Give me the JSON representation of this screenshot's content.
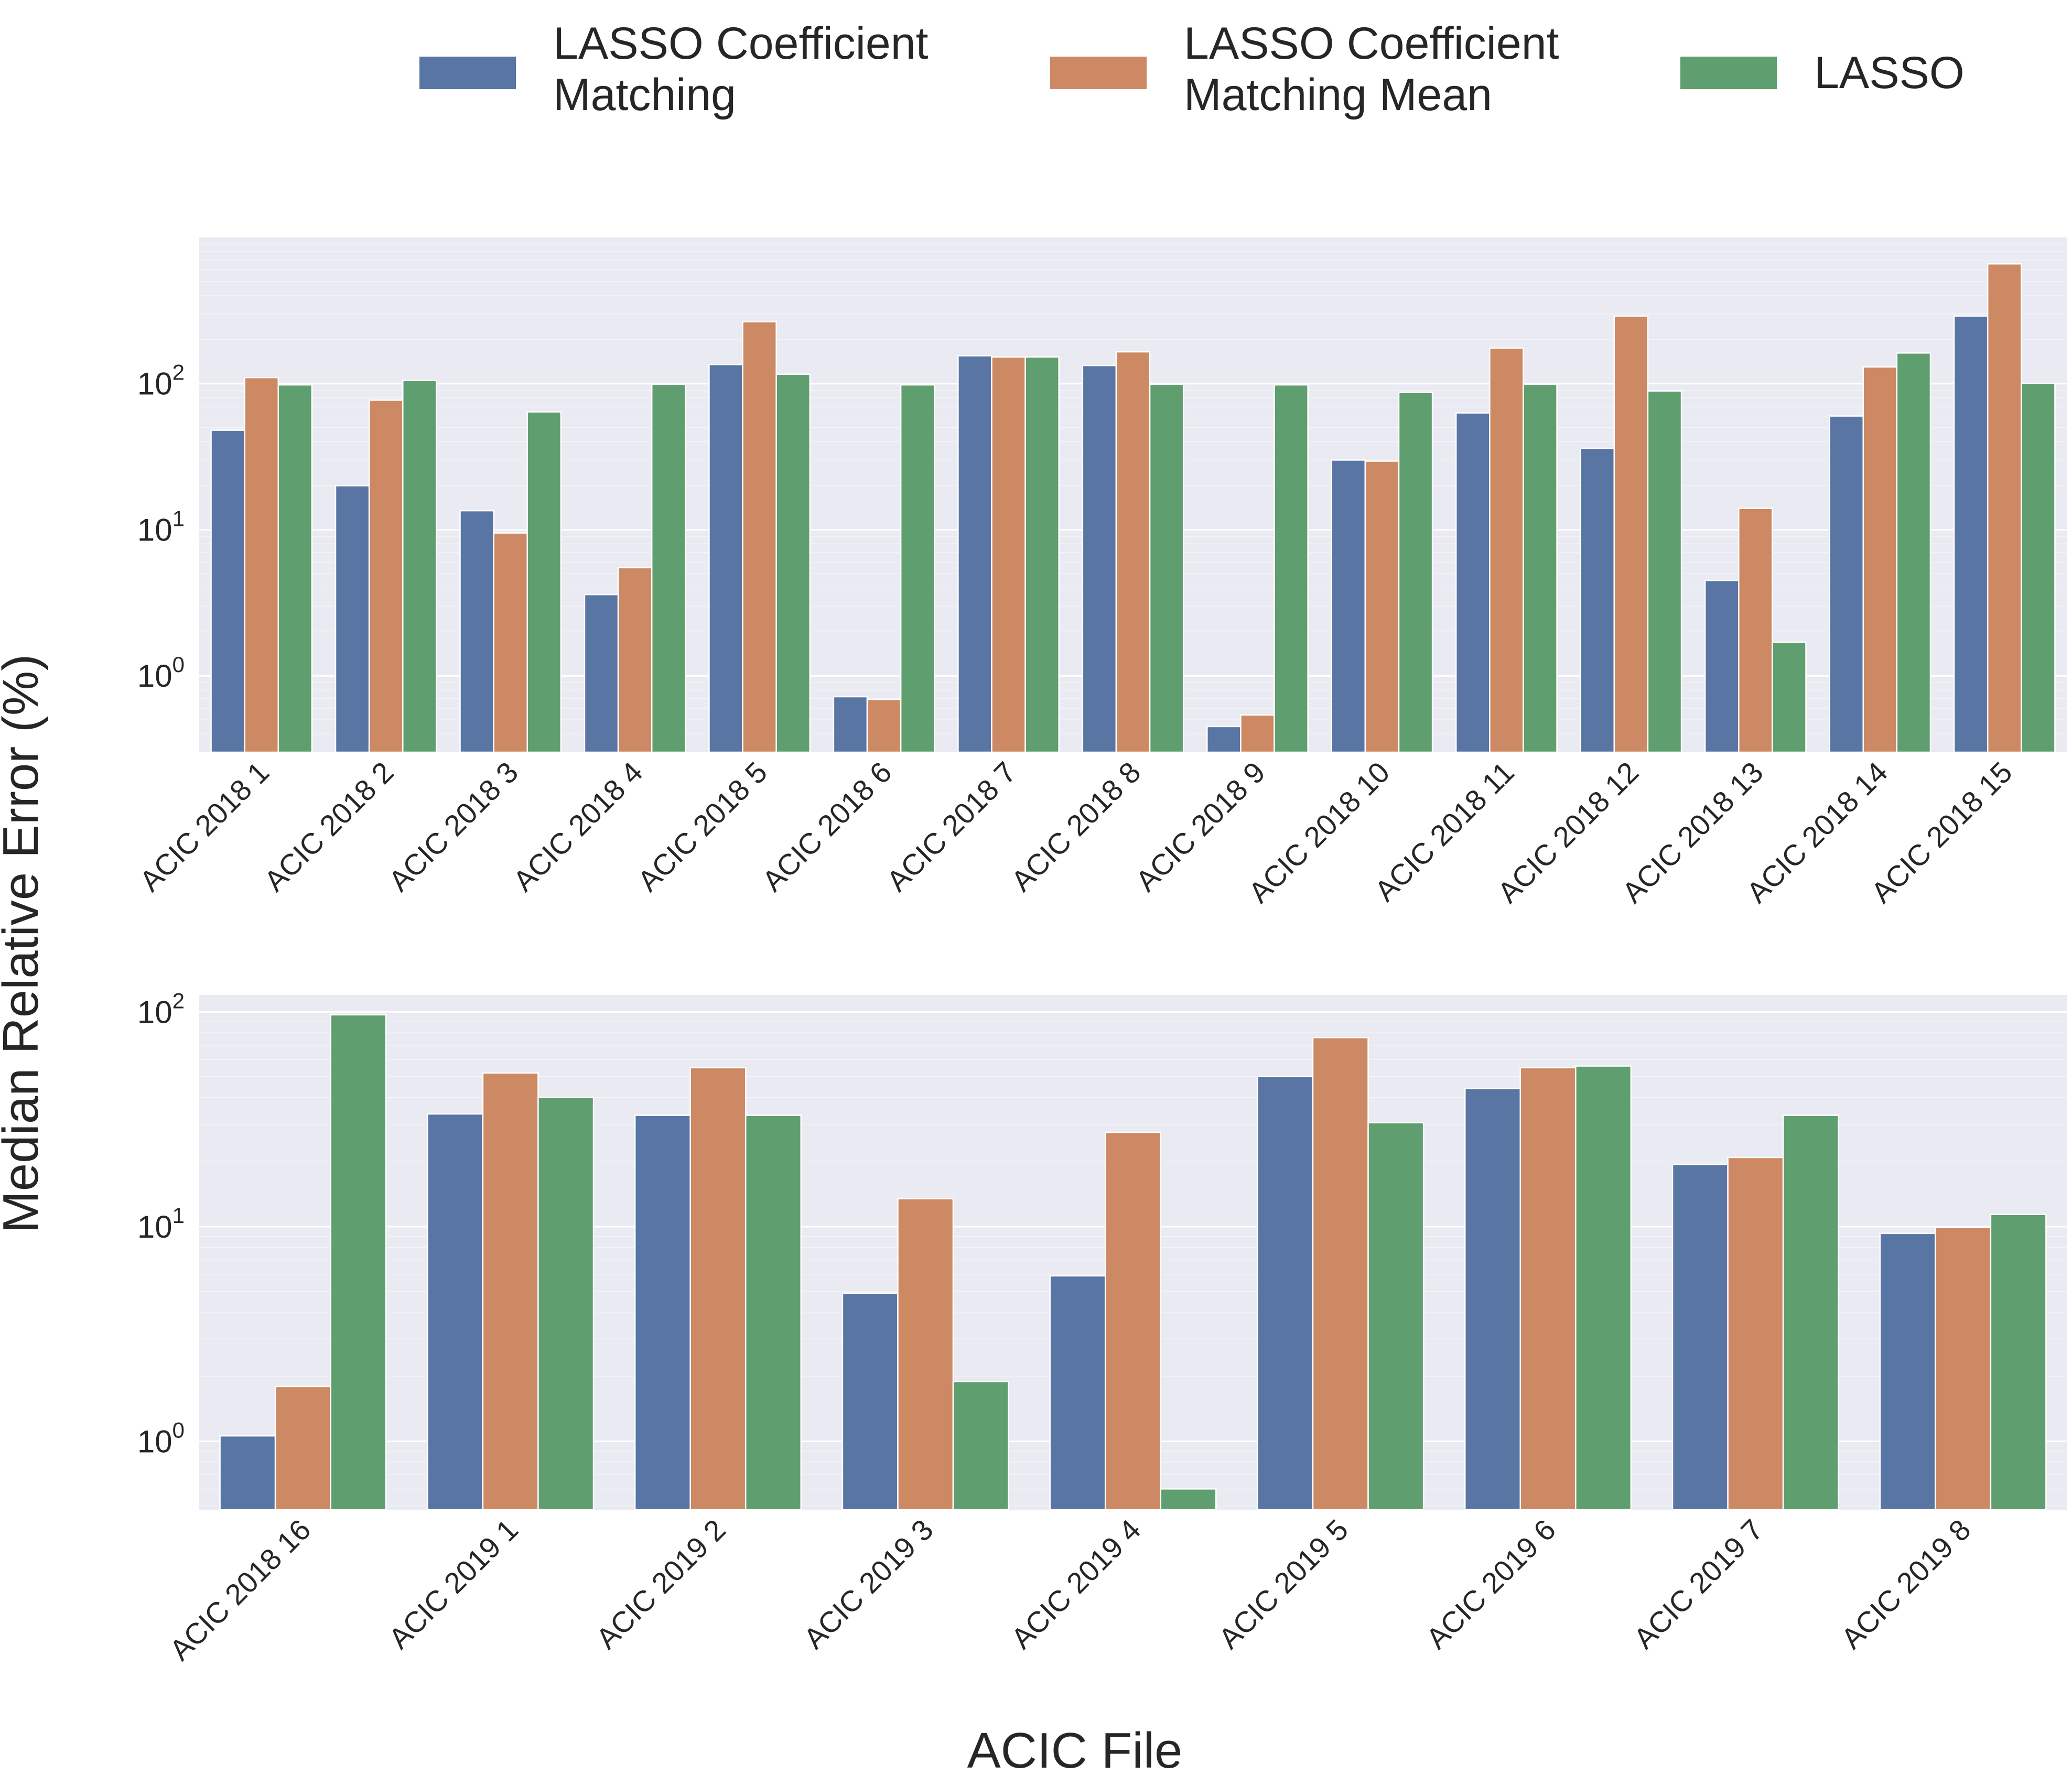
{
  "legend": {
    "items": [
      {
        "line1": "LASSO Coefficient",
        "line2": "Matching",
        "color": "#5875a4"
      },
      {
        "line1": "LASSO Coefficient",
        "line2": "Matching Mean",
        "color": "#cc8963"
      },
      {
        "line1": "LASSO",
        "line2": "",
        "color": "#5f9e6e"
      }
    ]
  },
  "axes": {
    "ylabel": "Median Relative Error (%)",
    "xlabel": "ACIC File"
  },
  "chart_data": [
    {
      "type": "bar",
      "yscale": "log",
      "ylim": [
        0.3,
        1000
      ],
      "yticks": [
        {
          "value": 1,
          "base": "10",
          "exp": "0"
        },
        {
          "value": 10,
          "base": "10",
          "exp": "1"
        },
        {
          "value": 100,
          "base": "10",
          "exp": "2"
        }
      ],
      "grid": true,
      "categories": [
        "ACIC 2018 1",
        "ACIC 2018 2",
        "ACIC 2018 3",
        "ACIC 2018 4",
        "ACIC 2018 5",
        "ACIC 2018 6",
        "ACIC 2018 7",
        "ACIC 2018 8",
        "ACIC 2018 9",
        "ACIC 2018 10",
        "ACIC 2018 11",
        "ACIC 2018 12",
        "ACIC 2018 13",
        "ACIC 2018 14",
        "ACIC 2018 15"
      ],
      "series": [
        {
          "name": "LASSO Coefficient Matching",
          "color": "#5875a4",
          "values": [
            48,
            20,
            13.5,
            3.6,
            135,
            0.72,
            155,
            133,
            0.45,
            30,
            63,
            36,
            4.5,
            60,
            290
          ]
        },
        {
          "name": "LASSO Coefficient Matching Mean",
          "color": "#cc8963",
          "values": [
            110,
            77,
            9.5,
            5.5,
            265,
            0.69,
            152,
            165,
            0.54,
            29.5,
            175,
            290,
            14,
            130,
            660
          ]
        },
        {
          "name": "LASSO",
          "color": "#5f9e6e",
          "values": [
            98,
            105,
            64,
            99,
            116,
            98,
            152,
            99,
            98,
            87,
            99,
            89,
            1.7,
            162,
            100
          ]
        }
      ]
    },
    {
      "type": "bar",
      "yscale": "log",
      "ylim": [
        0.48,
        120
      ],
      "yticks": [
        {
          "value": 1,
          "base": "10",
          "exp": "0"
        },
        {
          "value": 10,
          "base": "10",
          "exp": "1"
        },
        {
          "value": 100,
          "base": "10",
          "exp": "2"
        }
      ],
      "grid": true,
      "categories": [
        "ACIC 2018 16",
        "ACIC 2019 1",
        "ACIC 2019 2",
        "ACIC 2019 3",
        "ACIC 2019 4",
        "ACIC 2019 5",
        "ACIC 2019 6",
        "ACIC 2019 7",
        "ACIC 2019 8"
      ],
      "series": [
        {
          "name": "LASSO Coefficient Matching",
          "color": "#5875a4",
          "values": [
            1.06,
            33.5,
            33,
            4.9,
            5.9,
            50,
            44,
            19.5,
            9.3
          ]
        },
        {
          "name": "LASSO Coefficient Matching Mean",
          "color": "#cc8963",
          "values": [
            1.8,
            52,
            55,
            13.5,
            27.5,
            76,
            55,
            21,
            9.9
          ]
        },
        {
          "name": "LASSO",
          "color": "#5f9e6e",
          "values": [
            97,
            40,
            33,
            1.9,
            0.6,
            30.5,
            56,
            33,
            11.4
          ]
        }
      ]
    }
  ]
}
